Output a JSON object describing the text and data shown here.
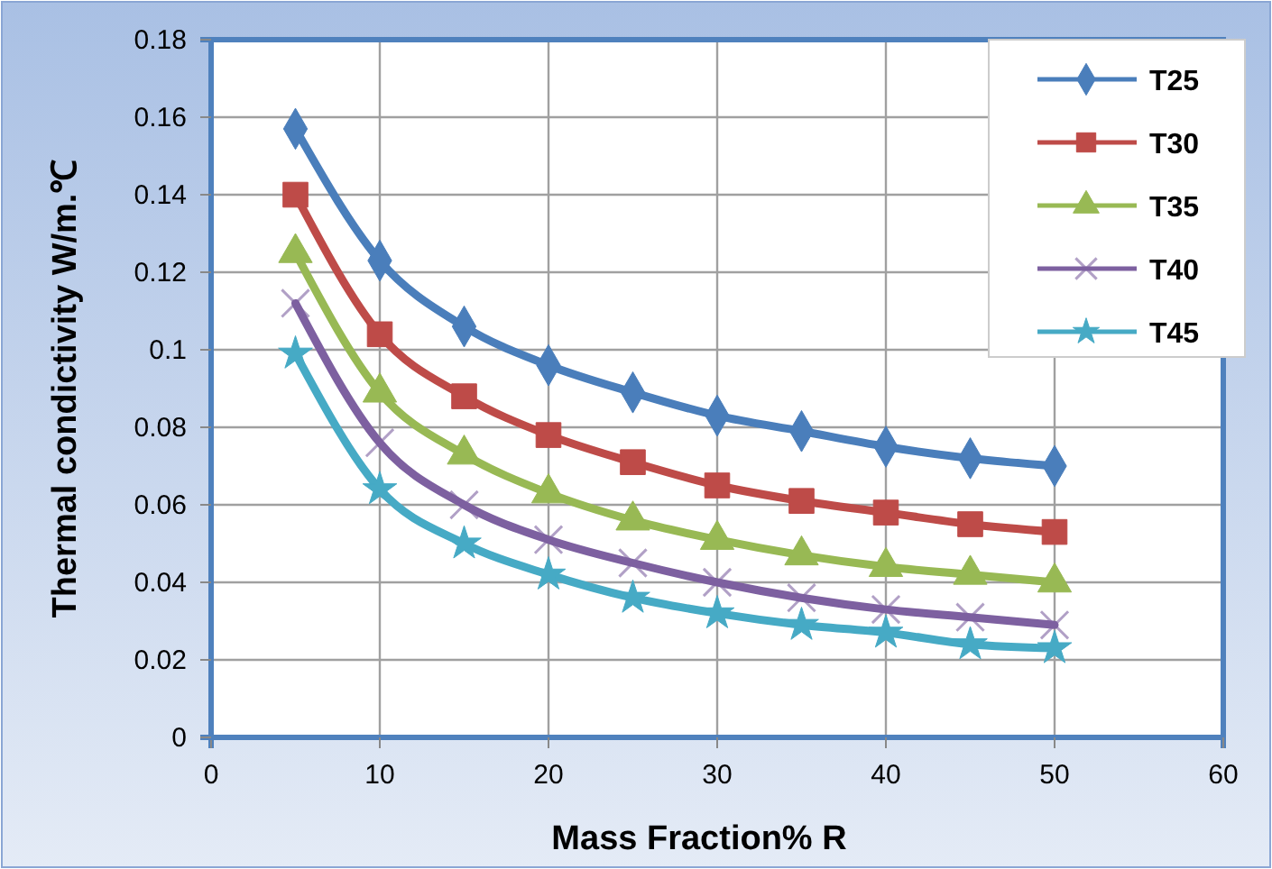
{
  "chart_data": {
    "type": "line",
    "xlabel": "Mass Fraction% R",
    "ylabel": "Thermal condictivity W/m.℃",
    "x": [
      5,
      10,
      15,
      20,
      25,
      30,
      35,
      40,
      45,
      50
    ],
    "xlim": [
      0,
      60
    ],
    "xticks": [
      0,
      10,
      20,
      30,
      40,
      50,
      60
    ],
    "ylim": [
      0,
      0.18
    ],
    "yticks": [
      0,
      0.02,
      0.04,
      0.06,
      0.08,
      0.1,
      0.12,
      0.14,
      0.16,
      0.18
    ],
    "grid": true,
    "legend": "top right",
    "series": [
      {
        "name": "T25",
        "color": "#4a7ebb",
        "marker": "diamond",
        "values": [
          0.157,
          0.123,
          0.106,
          0.096,
          0.089,
          0.083,
          0.079,
          0.075,
          0.072,
          0.07
        ]
      },
      {
        "name": "T30",
        "color": "#be4b48",
        "marker": "square",
        "values": [
          0.14,
          0.104,
          0.088,
          0.078,
          0.071,
          0.065,
          0.061,
          0.058,
          0.055,
          0.053
        ]
      },
      {
        "name": "T35",
        "color": "#98b954",
        "marker": "triangle",
        "values": [
          0.125,
          0.089,
          0.073,
          0.063,
          0.056,
          0.051,
          0.047,
          0.044,
          0.042,
          0.04
        ]
      },
      {
        "name": "T40",
        "color": "#7d60a0",
        "marker": "cross",
        "values": [
          0.112,
          0.076,
          0.06,
          0.051,
          0.045,
          0.04,
          0.036,
          0.033,
          0.031,
          0.029
        ]
      },
      {
        "name": "T45",
        "color": "#46aac5",
        "marker": "star",
        "values": [
          0.099,
          0.064,
          0.05,
          0.042,
          0.036,
          0.032,
          0.029,
          0.027,
          0.024,
          0.023
        ]
      }
    ]
  }
}
